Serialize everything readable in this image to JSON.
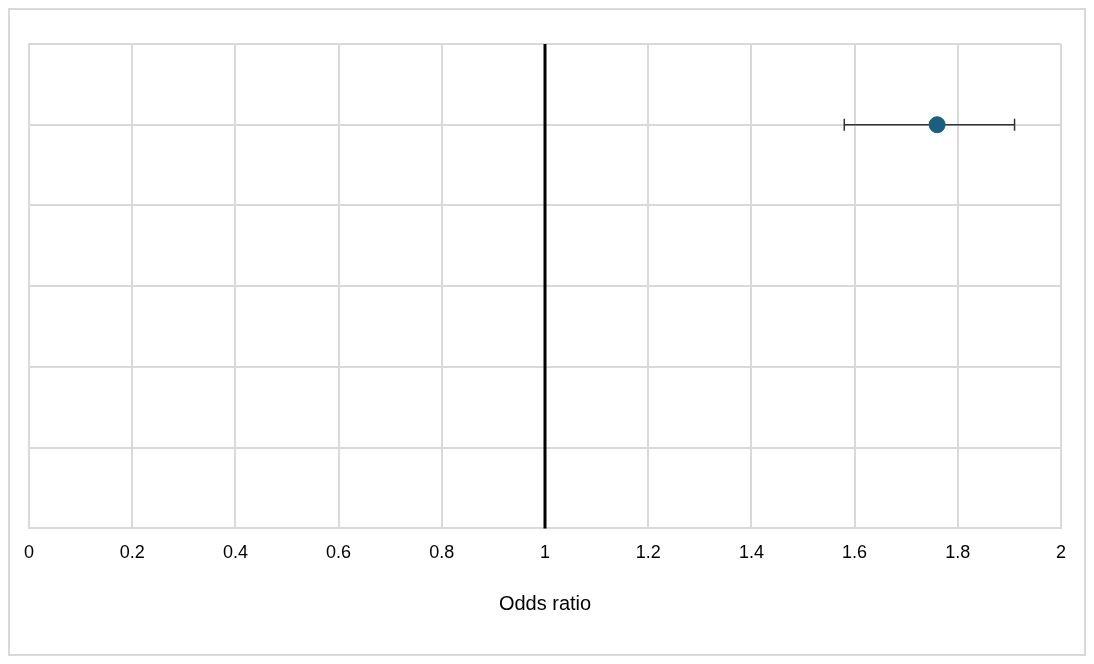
{
  "chart_data": {
    "type": "scatter",
    "orientation": "horizontal",
    "xlabel": "Odds ratio",
    "categories": [
      null,
      null,
      null,
      null,
      null,
      null,
      null
    ],
    "series": [
      {
        "color": "#1b5f80",
        "values": [
          null,
          1.76,
          null,
          null,
          null,
          null,
          null
        ],
        "errors": [
          null,
          [
            1.58,
            1.91
          ],
          null,
          null,
          null,
          null,
          null
        ]
      }
    ],
    "xlim": [
      0,
      2
    ],
    "xticks": [
      0,
      0.2,
      0.4,
      0.6,
      0.8,
      1,
      1.2,
      1.4,
      1.6,
      1.8,
      2
    ],
    "tick_labels": "x",
    "grid": true,
    "legend": false,
    "marker": "circle",
    "ref_lines": [
      {
        "axis": "x",
        "value": 1,
        "color": "#000000",
        "line_style": "solid"
      }
    ]
  }
}
